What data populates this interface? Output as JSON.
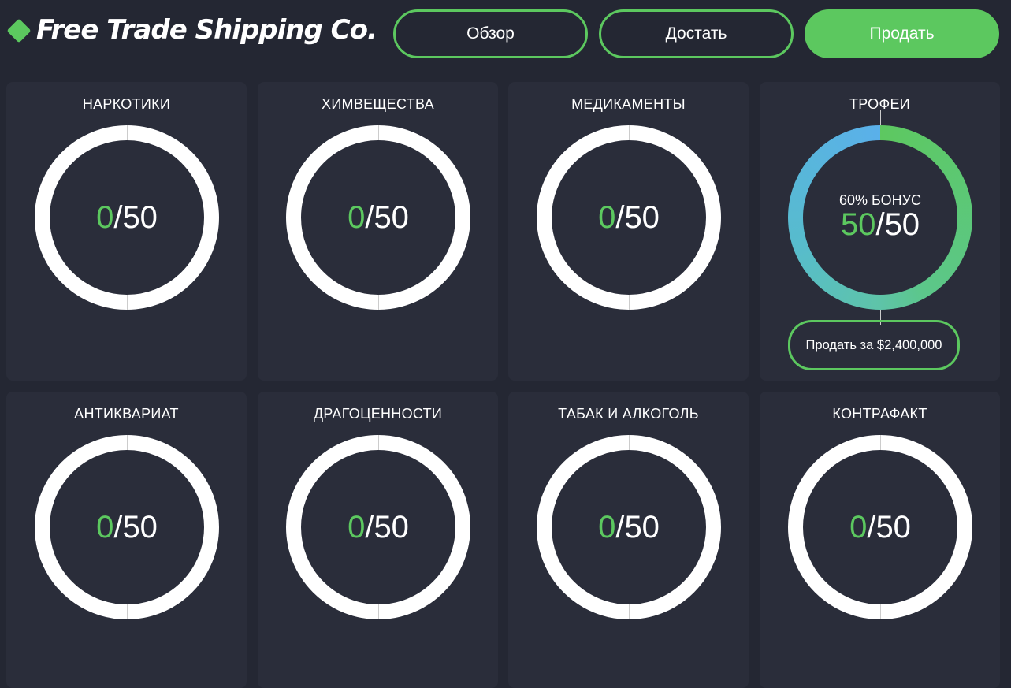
{
  "header": {
    "logo_text": "Free Trade Shipping Co.",
    "buttons": [
      {
        "label": "Обзор"
      },
      {
        "label": "Достать"
      },
      {
        "label": "Продать"
      }
    ]
  },
  "accent": "#5cc85f",
  "cards": [
    {
      "title": "НАРКОТИКИ",
      "current": "0",
      "max": "50"
    },
    {
      "title": "ХИМВЕЩЕСТВА",
      "current": "0",
      "max": "50"
    },
    {
      "title": "МЕДИКАМЕНТЫ",
      "current": "0",
      "max": "50"
    },
    {
      "title": "ТРОФЕИ",
      "current": "50",
      "max": "50",
      "bonus": "60% БОНУС",
      "sell_label": "Продать за $2,400,000"
    },
    {
      "title": "АНТИКВАРИАТ",
      "current": "0",
      "max": "50"
    },
    {
      "title": "ДРАГОЦЕННОСТИ",
      "current": "0",
      "max": "50"
    },
    {
      "title": "ТАБАК И АЛКОГОЛЬ",
      "current": "0",
      "max": "50"
    },
    {
      "title": "КОНТРАФАКТ",
      "current": "0",
      "max": "50"
    }
  ]
}
